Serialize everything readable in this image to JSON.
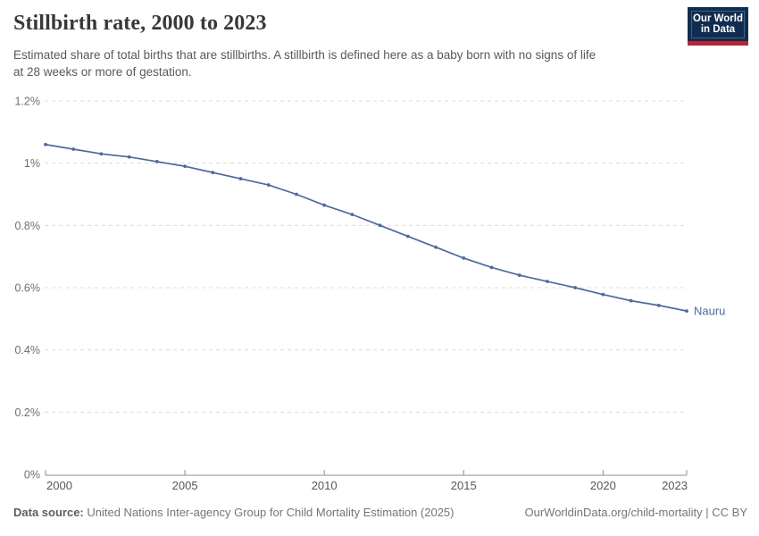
{
  "header": {
    "title": "Stillbirth rate, 2000 to 2023",
    "subtitle_line1": "Estimated share of total births that are stillbirths. A stillbirth is defined here as a baby born with no signs of life",
    "subtitle_line2": "at 28 weeks or more of gestation.",
    "logo_line1": "Our World",
    "logo_line2": "in Data"
  },
  "footer": {
    "source_label": "Data source:",
    "source_text": " United Nations Inter-agency Group for Child Mortality Estimation (2025)",
    "link_text": "OurWorldinData.org/child-mortality | CC BY"
  },
  "colors": {
    "line": "#4C6A9C",
    "entity_label": "#4C6A9C",
    "gridline": "#dcdcdc",
    "axis": "#8c8c8c",
    "logo_navy": "#102d50",
    "logo_red": "#b92337"
  },
  "chart_data": {
    "type": "line",
    "title": "Stillbirth rate, 2000 to 2023",
    "xlabel": "",
    "ylabel": "",
    "xlim": [
      2000,
      2023
    ],
    "ylim": [
      0,
      1.2
    ],
    "unit": "%",
    "grid": "dashed-horizontal",
    "legend_position": "end-of-line-label",
    "x": [
      2000,
      2001,
      2002,
      2003,
      2004,
      2005,
      2006,
      2007,
      2008,
      2009,
      2010,
      2011,
      2012,
      2013,
      2014,
      2015,
      2016,
      2017,
      2018,
      2019,
      2020,
      2021,
      2022,
      2023
    ],
    "series": [
      {
        "name": "Nauru",
        "values": [
          1.06,
          1.045,
          1.03,
          1.02,
          1.005,
          0.99,
          0.97,
          0.95,
          0.93,
          0.9,
          0.865,
          0.835,
          0.8,
          0.765,
          0.73,
          0.695,
          0.665,
          0.64,
          0.62,
          0.6,
          0.578,
          0.558,
          0.543,
          0.525
        ]
      }
    ],
    "x_ticks": [
      {
        "v": 2000,
        "label": "2000"
      },
      {
        "v": 2005,
        "label": "2005"
      },
      {
        "v": 2010,
        "label": "2010"
      },
      {
        "v": 2015,
        "label": "2015"
      },
      {
        "v": 2020,
        "label": "2020"
      },
      {
        "v": 2023,
        "label": "2023"
      }
    ],
    "y_ticks": [
      {
        "v": 0,
        "label": "0%"
      },
      {
        "v": 0.2,
        "label": "0.2%"
      },
      {
        "v": 0.4,
        "label": "0.4%"
      },
      {
        "v": 0.6,
        "label": "0.6%"
      },
      {
        "v": 0.8,
        "label": "0.8%"
      },
      {
        "v": 1,
        "label": "1%"
      },
      {
        "v": 1.2,
        "label": "1.2%"
      }
    ]
  }
}
